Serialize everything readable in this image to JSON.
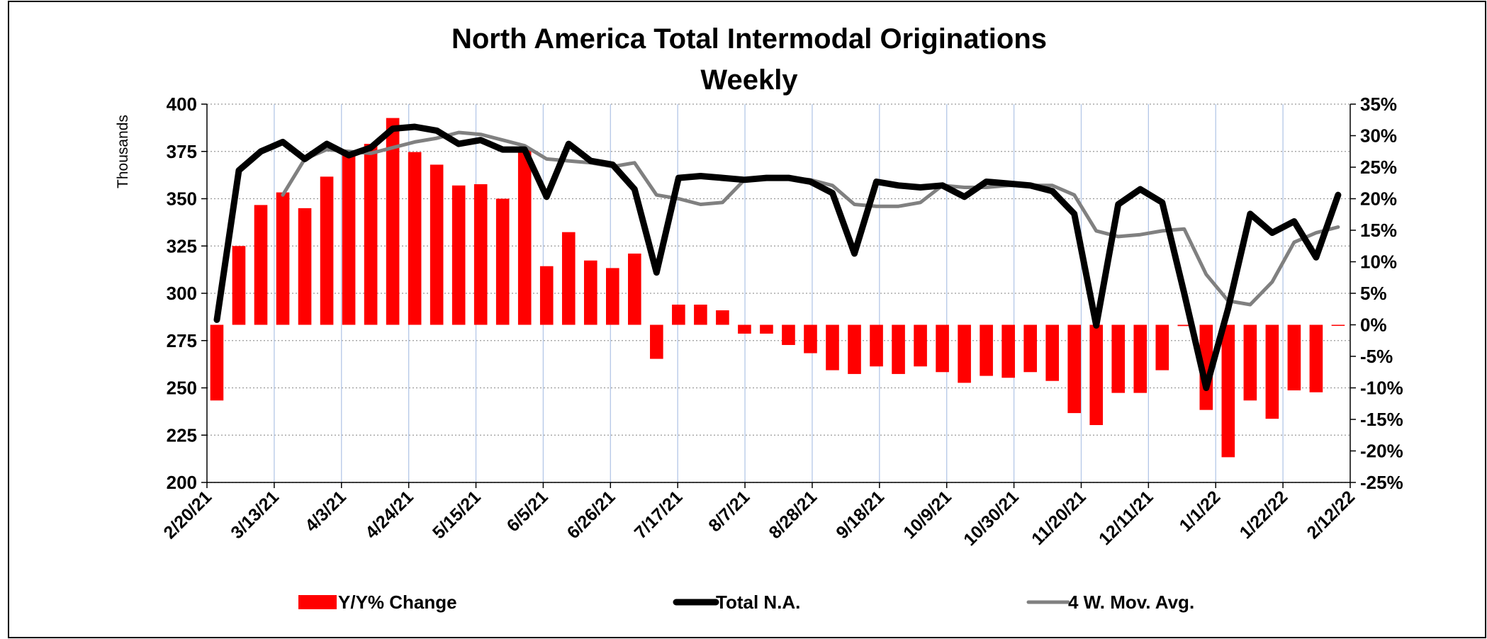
{
  "chart_data": {
    "type": "combo",
    "title": "North America Total Intermodal Originations",
    "subtitle": "Weekly",
    "y_label": "Thousands",
    "xticks": [
      "2/20/21",
      "3/13/21",
      "4/3/21",
      "4/24/21",
      "5/15/21",
      "6/5/21",
      "6/26/21",
      "7/17/21",
      "8/7/21",
      "8/28/21",
      "9/18/21",
      "10/9/21",
      "10/30/21",
      "11/20/21",
      "12/11/21",
      "1/1/22",
      "1/22/22",
      "2/12/22"
    ],
    "ylim": [
      200,
      400
    ],
    "yticks": [
      200,
      225,
      250,
      275,
      300,
      325,
      350,
      375,
      400
    ],
    "y2lim": [
      -25,
      35
    ],
    "y2ticks": [
      {
        "value": -25,
        "label": "-25%"
      },
      {
        "value": -20,
        "label": "-20%"
      },
      {
        "value": -15,
        "label": "-15%"
      },
      {
        "value": -10,
        "label": "-10%"
      },
      {
        "value": -5,
        "label": "-5%"
      },
      {
        "value": 0,
        "label": "0%"
      },
      {
        "value": 5,
        "label": "5%"
      },
      {
        "value": 10,
        "label": "10%"
      },
      {
        "value": 15,
        "label": "15%"
      },
      {
        "value": 20,
        "label": "20%"
      },
      {
        "value": 25,
        "label": "25%"
      },
      {
        "value": 30,
        "label": "30%"
      },
      {
        "value": 35,
        "label": "35%"
      }
    ],
    "grid": true,
    "series": [
      {
        "name": "Y/Y% Change",
        "type": "bar",
        "axis": "y2",
        "color": "#ff0000",
        "values": [
          -12,
          12.5,
          19,
          21,
          18.5,
          23.5,
          27,
          28.7,
          32.8,
          27.4,
          25.4,
          22.1,
          22.3,
          20,
          27.8,
          9.3,
          14.7,
          10.2,
          9,
          11.3,
          -5.4,
          3.2,
          3.2,
          2.3,
          -1.4,
          -1.4,
          -3.2,
          -4.5,
          -7.2,
          -7.8,
          -6.6,
          -7.8,
          -6.6,
          -7.5,
          -9.2,
          -8.1,
          -8.4,
          -7.5,
          -8.9,
          -14,
          -15.9,
          -10.8,
          -10.8,
          -7.2,
          -0.2,
          -13.5,
          -21,
          -12,
          -14.9,
          -10.4,
          -10.7,
          -0.1
        ]
      },
      {
        "name": "Total N.A.",
        "type": "line",
        "color": "#000000",
        "values": [
          286,
          365,
          375,
          380,
          371,
          379,
          373,
          377,
          387,
          388,
          386,
          379,
          381,
          376,
          376,
          351,
          379,
          370,
          368,
          355,
          311,
          361,
          362,
          361,
          360,
          361,
          361,
          359,
          353,
          321,
          359,
          357,
          356,
          357,
          351,
          359,
          358,
          357,
          354,
          342,
          283,
          347,
          355,
          348,
          300,
          250,
          292,
          342,
          332,
          338,
          319,
          352
        ]
      },
      {
        "name": "4 W. Mov. Avg.",
        "type": "line",
        "color": "#808080",
        "values": [
          null,
          null,
          null,
          352,
          371,
          376,
          375,
          374,
          377,
          380,
          382,
          385,
          384,
          381,
          378,
          371,
          370,
          369,
          367,
          369,
          352,
          350,
          347,
          348,
          360,
          361,
          361,
          360,
          357,
          347,
          346,
          346,
          348,
          357,
          356,
          356,
          357,
          357,
          357,
          352,
          333,
          330,
          331,
          333,
          334,
          310,
          296,
          294,
          306,
          327,
          332,
          335
        ]
      }
    ]
  }
}
